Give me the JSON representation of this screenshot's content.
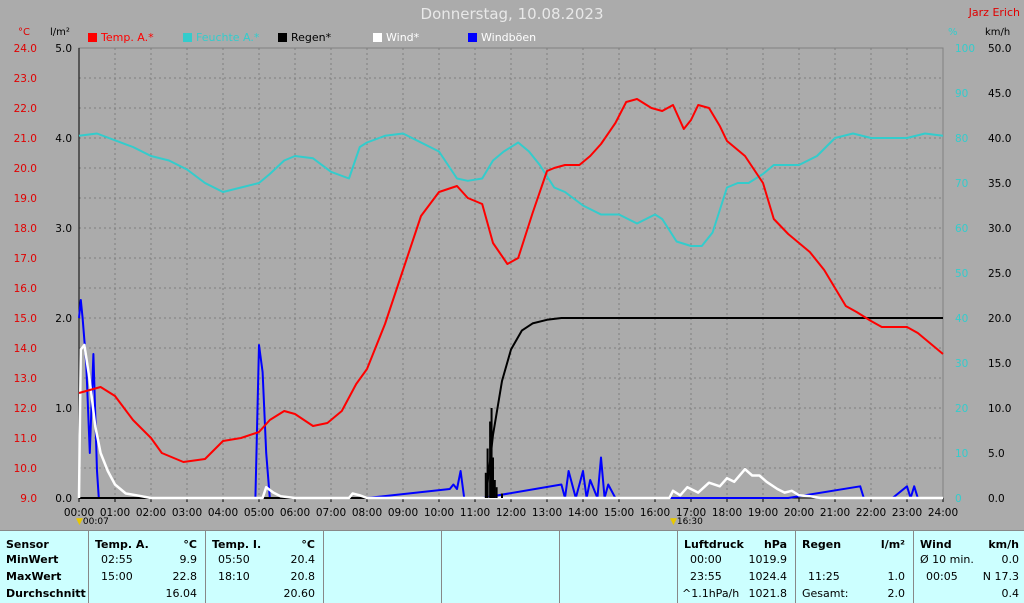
{
  "title": "Donnerstag, 10.08.2023",
  "author": "Jarz Erich",
  "legend": [
    {
      "label": "Temp. A.*",
      "color": "#ff0000"
    },
    {
      "label": "Feuchte A.*",
      "color": "#33cccc"
    },
    {
      "label": "Regen*",
      "color": "#000000"
    },
    {
      "label": "Wind*",
      "color": "#ffffff"
    },
    {
      "label": "Windböen",
      "color": "#0000ff"
    }
  ],
  "units": {
    "temp": "°C",
    "rain": "l/m²",
    "hum": "%",
    "wind": "km/h"
  },
  "markers": {
    "left": "00:07",
    "right": "16:30"
  },
  "chart_data": {
    "type": "line",
    "x_ticks": [
      "00:00",
      "01:00",
      "02:00",
      "03:00",
      "04:00",
      "05:00",
      "06:00",
      "07:00",
      "08:00",
      "09:00",
      "10:00",
      "11:00",
      "12:00",
      "13:00",
      "14:00",
      "15:00",
      "16:00",
      "17:00",
      "18:00",
      "19:00",
      "20:00",
      "21:00",
      "22:00",
      "23:00",
      "24:00"
    ],
    "axes": {
      "temp": {
        "min": 9.0,
        "max": 24.0,
        "ticks": [
          "9.0",
          "10.0",
          "11.0",
          "12.0",
          "13.0",
          "14.0",
          "15.0",
          "16.0",
          "17.0",
          "18.0",
          "19.0",
          "20.0",
          "21.0",
          "22.0",
          "23.0",
          "24.0"
        ]
      },
      "rain": {
        "min": 0,
        "max": 5.0,
        "ticks": [
          "0.0",
          "1.0",
          "2.0",
          "3.0",
          "4.0",
          "5.0"
        ]
      },
      "hum": {
        "min": 0,
        "max": 100,
        "ticks": [
          "0",
          "10",
          "20",
          "30",
          "40",
          "50",
          "60",
          "70",
          "80",
          "90",
          "100"
        ]
      },
      "wind": {
        "min": 0,
        "max": 50,
        "ticks": [
          "0.0",
          "5.0",
          "10.0",
          "15.0",
          "20.0",
          "25.0",
          "30.0",
          "35.0",
          "40.0",
          "45.0",
          "50.0"
        ]
      }
    },
    "grid": true,
    "series": [
      {
        "name": "Temp. A.*",
        "axis": "temp",
        "color": "#ff0000",
        "x": [
          0,
          0.3,
          0.6,
          1,
          1.5,
          2,
          2.3,
          2.9,
          3.5,
          4,
          4.5,
          5,
          5.3,
          5.7,
          6,
          6.5,
          6.9,
          7.3,
          7.7,
          8,
          8.5,
          9,
          9.5,
          10,
          10.5,
          10.8,
          11.2,
          11.5,
          11.9,
          12.2,
          12.6,
          13,
          13.2,
          13.5,
          13.9,
          14.2,
          14.5,
          14.9,
          15.2,
          15.5,
          15.9,
          16.2,
          16.5,
          16.8,
          17,
          17.2,
          17.5,
          17.8,
          18,
          18.5,
          19,
          19.3,
          19.7,
          20,
          20.3,
          20.7,
          21,
          21.3,
          21.6,
          22,
          22.3,
          22.7,
          23,
          23.3,
          23.6,
          24
        ],
        "y": [
          12.5,
          12.6,
          12.7,
          12.4,
          11.6,
          11.0,
          10.5,
          10.2,
          10.3,
          10.9,
          11.0,
          11.2,
          11.6,
          11.9,
          11.8,
          11.4,
          11.5,
          11.9,
          12.8,
          13.3,
          14.8,
          16.6,
          18.4,
          19.2,
          19.4,
          19.0,
          18.8,
          17.5,
          16.8,
          17.0,
          18.5,
          19.9,
          20.0,
          20.1,
          20.1,
          20.4,
          20.8,
          21.5,
          22.2,
          22.3,
          22.0,
          21.9,
          22.1,
          21.3,
          21.6,
          22.1,
          22.0,
          21.4,
          20.9,
          20.4,
          19.5,
          18.3,
          17.8,
          17.5,
          17.2,
          16.6,
          16.0,
          15.4,
          15.2,
          14.9,
          14.7,
          14.7,
          14.7,
          14.5,
          14.2,
          13.8
        ]
      },
      {
        "name": "Feuchte A.*",
        "axis": "hum",
        "color": "#33cccc",
        "x": [
          0,
          0.5,
          1,
          1.5,
          2,
          2.5,
          3,
          3.5,
          4,
          4.5,
          5,
          5.3,
          5.7,
          6,
          6.5,
          7,
          7.5,
          7.8,
          8,
          8.5,
          9,
          9.5,
          10,
          10.5,
          10.8,
          11.2,
          11.5,
          11.8,
          12.2,
          12.5,
          12.8,
          13.2,
          13.5,
          14,
          14.5,
          15,
          15.5,
          16,
          16.2,
          16.6,
          17,
          17.3,
          17.6,
          18,
          18.3,
          18.6,
          19,
          19.3,
          19.7,
          20,
          20.5,
          21,
          21.5,
          22,
          22.5,
          23,
          23.5,
          24
        ],
        "y": [
          80.5,
          81,
          79.5,
          78,
          76,
          75,
          73,
          70,
          68,
          69,
          70,
          72,
          75,
          76,
          75.5,
          72.5,
          71,
          78,
          79,
          80.5,
          81,
          79,
          77,
          71,
          70.5,
          71,
          75,
          77,
          79,
          77,
          74,
          69,
          68,
          65,
          63,
          63,
          61,
          63,
          62,
          57,
          56,
          56,
          59,
          69,
          70,
          70,
          72,
          74,
          74,
          74,
          76,
          80,
          81,
          80,
          80,
          80,
          81,
          80.5
        ]
      },
      {
        "name": "Regen*",
        "axis": "rain",
        "color": "#000000",
        "x": [
          0,
          11.3,
          11.5,
          11.75,
          12,
          12.3,
          12.6,
          13,
          13.4,
          14,
          24
        ],
        "y": [
          0,
          0,
          0.7,
          1.3,
          1.65,
          1.86,
          1.94,
          1.98,
          2.0,
          2.0,
          2.0
        ]
      },
      {
        "name": "Wind*",
        "axis": "wind",
        "color": "#ffffff",
        "x": [
          0,
          0.05,
          0.15,
          0.3,
          0.45,
          0.6,
          0.8,
          1.0,
          1.3,
          1.6,
          2.0,
          2.2,
          5.0,
          5.1,
          5.2,
          5.4,
          5.6,
          6.0,
          7.5,
          7.6,
          7.8,
          8.0,
          16.4,
          16.5,
          16.7,
          16.9,
          17.2,
          17.5,
          17.8,
          18.0,
          18.2,
          18.5,
          18.7,
          18.9,
          19.1,
          19.4,
          19.6,
          19.8,
          20.0,
          20.3,
          20.6,
          24
        ],
        "y": [
          0,
          16.5,
          17,
          13,
          8,
          5,
          3,
          1.5,
          0.5,
          0.3,
          0,
          0,
          0,
          0,
          1.2,
          0.6,
          0.2,
          0,
          0,
          0.5,
          0.3,
          0,
          0,
          0.8,
          0.3,
          1.2,
          0.6,
          1.7,
          1.3,
          2.2,
          1.8,
          3.2,
          2.5,
          2.5,
          1.8,
          1.0,
          0.6,
          0.8,
          0.3,
          0.2,
          0,
          0
        ]
      },
      {
        "name": "Windböen",
        "axis": "wind",
        "color": "#0000ff",
        "x": [
          0,
          0.05,
          0.1,
          0.2,
          0.3,
          0.4,
          0.5,
          0.55,
          0.6,
          0.7,
          0.8,
          0.9,
          1.0,
          1.1,
          1.2,
          1.3,
          1.4,
          1.5,
          1.55,
          1.6,
          1.7,
          1.8,
          1.9,
          2.0,
          2.1,
          2.15,
          2.2,
          2.3,
          4.9,
          5.0,
          5.1,
          5.2,
          5.3,
          5.4,
          5.5,
          7.3,
          7.4,
          7.5,
          7.6,
          7.65,
          7.7,
          7.75,
          7.8,
          7.9,
          8.0,
          10.3,
          10.4,
          10.5,
          10.6,
          10.7,
          10.8,
          10.9,
          11.0,
          11.1,
          11.2,
          13.4,
          13.5,
          13.6,
          13.8,
          14.0,
          14.1,
          14.2,
          14.4,
          14.5,
          14.6,
          14.7,
          14.9,
          15.0,
          15.1,
          15.2,
          16.0,
          16.1,
          16.15,
          16.2,
          16.3,
          16.5,
          16.6,
          16.7,
          16.8,
          16.9,
          17.0,
          17.1,
          17.2,
          17.3,
          17.4,
          17.5,
          17.6,
          17.7,
          17.8,
          17.9,
          18.0,
          18.1,
          18.2,
          18.3,
          18.4,
          18.5,
          18.6,
          18.7,
          18.8,
          18.9,
          19.0,
          19.1,
          19.2,
          19.3,
          19.4,
          19.5,
          19.6,
          19.7,
          21.7,
          21.8,
          21.9,
          22.0,
          22.2,
          22.3,
          22.4,
          22.6,
          23.0,
          23.1,
          23.2,
          23.3,
          23.4,
          23.5,
          23.6
        ],
        "y": [
          20,
          22,
          20,
          15,
          5,
          16,
          3,
          0,
          0,
          0,
          0,
          0,
          0,
          0,
          0,
          0,
          0,
          0,
          0,
          0,
          0,
          0,
          0,
          0,
          0,
          0,
          0,
          0,
          0,
          17,
          14,
          5,
          0,
          0,
          0,
          0,
          0,
          0,
          0,
          0,
          0,
          0,
          0,
          0,
          0,
          1,
          1.5,
          1,
          3,
          0,
          0,
          0,
          0,
          0,
          0,
          1.5,
          0,
          3,
          0,
          3,
          0,
          2,
          0,
          4.5,
          0,
          1.5,
          0,
          0,
          0,
          0,
          0,
          0,
          0,
          0,
          0,
          0,
          0,
          0,
          0,
          0,
          0,
          0,
          0,
          0,
          0,
          0,
          0,
          0,
          0,
          0,
          0,
          0,
          0,
          0,
          0,
          0,
          0,
          0,
          0,
          0,
          0,
          0,
          0,
          0,
          0,
          0,
          0,
          0,
          1.3,
          0,
          0,
          0,
          0,
          0,
          0,
          0,
          1.3,
          0,
          1.3,
          0,
          0,
          0,
          0
        ]
      }
    ]
  },
  "table": {
    "sensor": {
      "header": "Sensor",
      "rows": [
        "MinWert",
        "MaxWert",
        "Durchschnitt"
      ]
    },
    "temp_a": {
      "header": "Temp. A.",
      "unit": "°C",
      "min_time": "02:55",
      "min_val": "9.9",
      "max_time": "15:00",
      "max_val": "22.8",
      "avg": "16.04"
    },
    "temp_i": {
      "header": "Temp. I.",
      "unit": "°C",
      "min_time": "05:50",
      "min_val": "20.4",
      "max_time": "18:10",
      "max_val": "20.8",
      "avg": "20.60"
    },
    "pressure": {
      "header": "Luftdruck",
      "unit": "hPa",
      "min_time": "00:00",
      "min_val": "1019.9",
      "max_time": "23:55",
      "max_val": "1024.4",
      "trend": "^1.1hPa/h",
      "avg": "1021.8"
    },
    "rain": {
      "header": "Regen",
      "unit": "l/m²",
      "max_time": "11:25",
      "max_val": "1.0",
      "total_label": "Gesamt:",
      "total": "2.0"
    },
    "wind": {
      "header": "Wind",
      "unit": "km/h",
      "min_label": "Ø 10 min.",
      "min_val": "0.0",
      "max_time": "00:05",
      "max_val": "N 17.3",
      "avg": "0.4"
    }
  }
}
